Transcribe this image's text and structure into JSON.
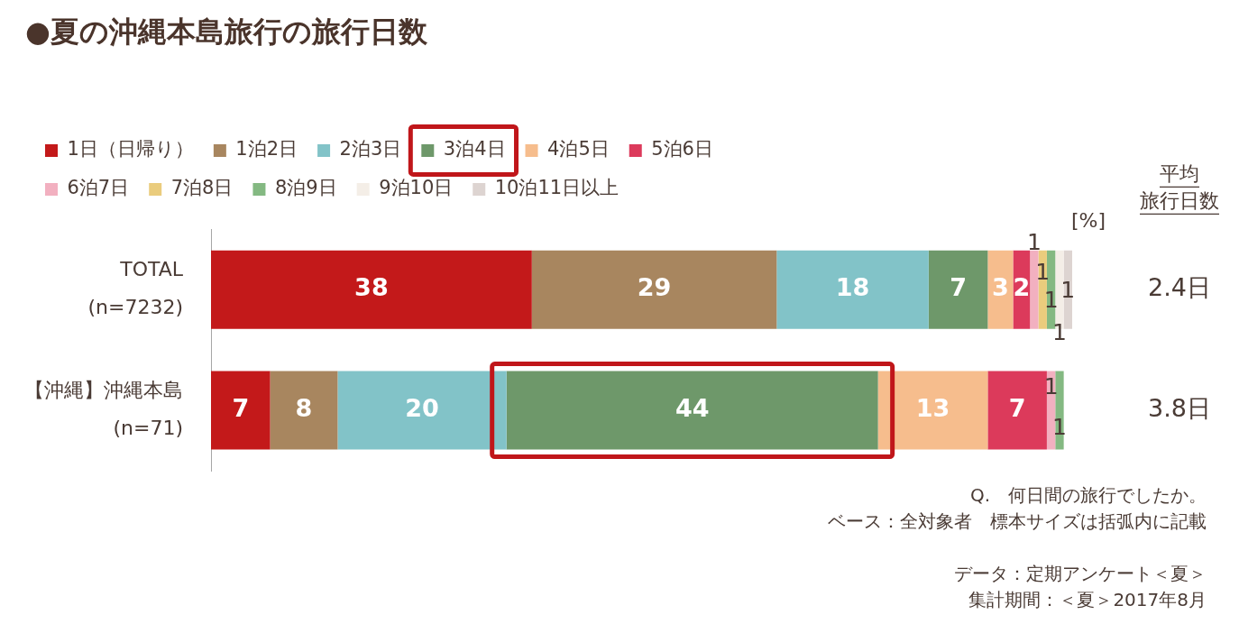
{
  "chart_data": {
    "type": "bar",
    "orientation": "horizontal",
    "stacked": true,
    "title": "●夏の沖縄本島旅行の旅行日数",
    "xlabel": "[%]",
    "y2label": "平均旅行日数",
    "categories": [
      "TOTAL\n(n=7232)",
      "【沖縄】沖縄本島\n(n=71)"
    ],
    "series": [
      {
        "name": "1日（日帰り）",
        "color": "#c3191a",
        "values": [
          38,
          7
        ],
        "value_labels": [
          "38",
          "7"
        ]
      },
      {
        "name": "1泊2日",
        "color": "#a8865f",
        "values": [
          29,
          8
        ],
        "value_labels": [
          "29",
          "8"
        ]
      },
      {
        "name": "2泊3日",
        "color": "#82c3c8",
        "values": [
          18,
          20
        ],
        "value_labels": [
          "18",
          "20"
        ]
      },
      {
        "name": "3泊4日",
        "color": "#6e986a",
        "values": [
          7,
          44
        ],
        "value_labels": [
          "7",
          "44"
        ]
      },
      {
        "name": "4泊5日",
        "color": "#f6bd8d",
        "values": [
          3,
          13
        ],
        "value_labels": [
          "3",
          "13"
        ]
      },
      {
        "name": "5泊6日",
        "color": "#dc3a5b",
        "values": [
          2,
          7
        ],
        "value_labels": [
          "2",
          "7"
        ]
      },
      {
        "name": "6泊7日",
        "color": "#f2b0c0",
        "values": [
          1,
          1
        ],
        "value_labels": [
          "1",
          "1"
        ]
      },
      {
        "name": "7泊8日",
        "color": "#eacc7d",
        "values": [
          1,
          0
        ],
        "value_labels": [
          "1",
          null
        ]
      },
      {
        "name": "8泊9日",
        "color": "#84b982",
        "values": [
          1,
          1
        ],
        "value_labels": [
          "1",
          "1"
        ]
      },
      {
        "name": "9泊10日",
        "color": "#f4eee7",
        "values": [
          1,
          0
        ],
        "value_labels": [
          "1",
          null
        ]
      },
      {
        "name": "10泊11日以上",
        "color": "#ddd4d1",
        "values": [
          1,
          0
        ],
        "value_labels": [
          "1",
          null
        ]
      }
    ],
    "xlim": [
      0,
      102
    ],
    "tick_labels": "y",
    "legend": "top left",
    "annotations": [
      "2.4日",
      "3.8日",
      "Q.　何日間の旅行でしたか。",
      "ベース：全対象者　標本サイズは括弧内に記載",
      "データ：定期アンケート＜夏＞",
      "集計期間：＜夏＞2017年8月"
    ]
  }
}
